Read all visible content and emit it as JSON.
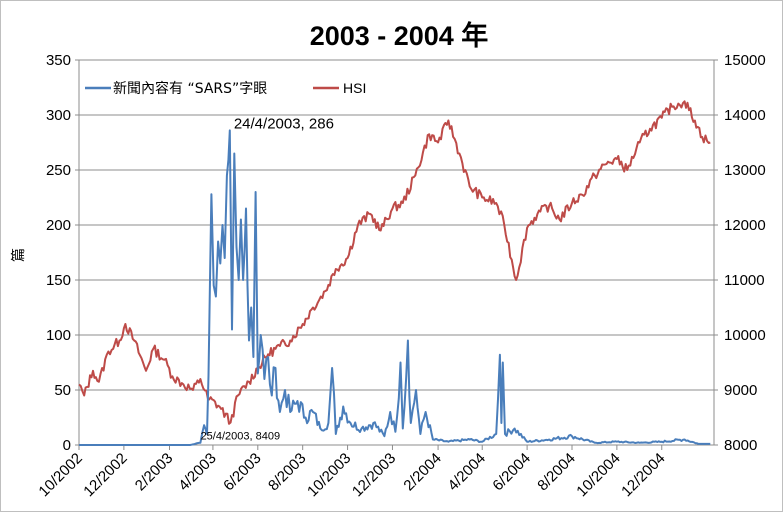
{
  "chart_data": {
    "type": "line",
    "title": "2003 - 2004 年",
    "ylabel": "篇",
    "y2label": "",
    "ylim": [
      0,
      350
    ],
    "y2lim": [
      8000,
      15000
    ],
    "yticks": [
      0,
      50,
      100,
      150,
      200,
      250,
      300,
      350
    ],
    "y2ticks": [
      8000,
      9000,
      10000,
      11000,
      12000,
      13000,
      14000,
      15000
    ],
    "xlim": [
      "2002-10-01",
      "2005-02-10"
    ],
    "xticks": [
      "10/2002",
      "12/2002",
      "2/2003",
      "4/2003",
      "6/2003",
      "8/2003",
      "10/2003",
      "12/2003",
      "2/2004",
      "4/2004",
      "6/2004",
      "8/2004",
      "10/2004",
      "12/2004"
    ],
    "grid": true,
    "legend_position": "top-left",
    "series": [
      {
        "name": "新聞內容有 “SARS”字眼",
        "axis": "left",
        "color": "#4a7ebb",
        "points": [
          [
            "2002-10-01",
            0
          ],
          [
            "2003-03-01",
            0
          ],
          [
            "2003-03-15",
            2
          ],
          [
            "2003-03-20",
            18
          ],
          [
            "2003-03-24",
            10
          ],
          [
            "2003-03-28",
            150
          ],
          [
            "2003-03-30",
            228
          ],
          [
            "2003-04-02",
            145
          ],
          [
            "2003-04-05",
            135
          ],
          [
            "2003-04-08",
            185
          ],
          [
            "2003-04-11",
            165
          ],
          [
            "2003-04-14",
            200
          ],
          [
            "2003-04-17",
            170
          ],
          [
            "2003-04-20",
            245
          ],
          [
            "2003-04-24",
            286
          ],
          [
            "2003-04-27",
            105
          ],
          [
            "2003-04-30",
            265
          ],
          [
            "2003-05-03",
            180
          ],
          [
            "2003-05-06",
            150
          ],
          [
            "2003-05-09",
            205
          ],
          [
            "2003-05-12",
            150
          ],
          [
            "2003-05-16",
            215
          ],
          [
            "2003-05-20",
            95
          ],
          [
            "2003-05-23",
            125
          ],
          [
            "2003-05-26",
            80
          ],
          [
            "2003-05-29",
            230
          ],
          [
            "2003-06-01",
            65
          ],
          [
            "2003-06-05",
            100
          ],
          [
            "2003-06-10",
            60
          ],
          [
            "2003-06-15",
            80
          ],
          [
            "2003-06-20",
            45
          ],
          [
            "2003-06-25",
            70
          ],
          [
            "2003-07-01",
            30
          ],
          [
            "2003-07-08",
            50
          ],
          [
            "2003-07-15",
            30
          ],
          [
            "2003-07-25",
            40
          ],
          [
            "2003-08-05",
            25
          ],
          [
            "2003-08-15",
            30
          ],
          [
            "2003-08-25",
            15
          ],
          [
            "2003-09-05",
            20
          ],
          [
            "2003-09-10",
            70
          ],
          [
            "2003-09-15",
            10
          ],
          [
            "2003-09-25",
            35
          ],
          [
            "2003-10-05",
            20
          ],
          [
            "2003-10-20",
            15
          ],
          [
            "2003-11-05",
            20
          ],
          [
            "2003-11-20",
            8
          ],
          [
            "2003-11-28",
            30
          ],
          [
            "2003-12-05",
            12
          ],
          [
            "2003-12-12",
            75
          ],
          [
            "2003-12-15",
            15
          ],
          [
            "2003-12-22",
            95
          ],
          [
            "2003-12-26",
            20
          ],
          [
            "2004-01-02",
            50
          ],
          [
            "2004-01-08",
            10
          ],
          [
            "2004-01-15",
            30
          ],
          [
            "2004-01-25",
            5
          ],
          [
            "2004-02-15",
            3
          ],
          [
            "2004-03-15",
            5
          ],
          [
            "2004-04-01",
            3
          ],
          [
            "2004-04-20",
            10
          ],
          [
            "2004-04-25",
            82
          ],
          [
            "2004-04-27",
            20
          ],
          [
            "2004-04-29",
            75
          ],
          [
            "2004-05-02",
            10
          ],
          [
            "2004-05-15",
            15
          ],
          [
            "2004-06-01",
            3
          ],
          [
            "2004-07-01",
            5
          ],
          [
            "2004-08-01",
            8
          ],
          [
            "2004-09-01",
            2
          ],
          [
            "2004-10-01",
            3
          ],
          [
            "2004-11-01",
            2
          ],
          [
            "2004-12-01",
            3
          ],
          [
            "2005-01-01",
            5
          ],
          [
            "2005-01-20",
            1
          ],
          [
            "2005-02-05",
            1
          ]
        ]
      },
      {
        "name": "HSI",
        "axis": "right",
        "color": "#be4b48",
        "points": [
          [
            "2002-10-01",
            9100
          ],
          [
            "2002-10-08",
            8900
          ],
          [
            "2002-10-20",
            9350
          ],
          [
            "2002-10-28",
            9150
          ],
          [
            "2002-11-10",
            9700
          ],
          [
            "2002-11-25",
            9900
          ],
          [
            "2002-12-03",
            10200
          ],
          [
            "2002-12-15",
            9900
          ],
          [
            "2002-12-31",
            9350
          ],
          [
            "2003-01-10",
            9750
          ],
          [
            "2003-01-25",
            9550
          ],
          [
            "2003-02-05",
            9250
          ],
          [
            "2003-02-20",
            9100
          ],
          [
            "2003-03-05",
            9000
          ],
          [
            "2003-03-15",
            9200
          ],
          [
            "2003-03-25",
            8850
          ],
          [
            "2003-04-10",
            8700
          ],
          [
            "2003-04-25",
            8409
          ],
          [
            "2003-05-05",
            8900
          ],
          [
            "2003-05-20",
            9150
          ],
          [
            "2003-06-01",
            9400
          ],
          [
            "2003-06-15",
            9650
          ],
          [
            "2003-07-01",
            9800
          ],
          [
            "2003-07-15",
            9900
          ],
          [
            "2003-08-01",
            10200
          ],
          [
            "2003-08-15",
            10500
          ],
          [
            "2003-09-01",
            10800
          ],
          [
            "2003-09-15",
            11200
          ],
          [
            "2003-10-01",
            11400
          ],
          [
            "2003-10-15",
            12000
          ],
          [
            "2003-11-01",
            12200
          ],
          [
            "2003-11-15",
            11900
          ],
          [
            "2003-12-01",
            12300
          ],
          [
            "2003-12-15",
            12400
          ],
          [
            "2004-01-01",
            12900
          ],
          [
            "2004-01-20",
            13650
          ],
          [
            "2004-02-01",
            13500
          ],
          [
            "2004-02-15",
            13900
          ],
          [
            "2004-03-01",
            13300
          ],
          [
            "2004-03-15",
            12700
          ],
          [
            "2004-04-01",
            12500
          ],
          [
            "2004-04-20",
            12400
          ],
          [
            "2004-05-01",
            12000
          ],
          [
            "2004-05-17",
            11000
          ],
          [
            "2004-06-01",
            11950
          ],
          [
            "2004-06-15",
            12200
          ],
          [
            "2004-07-01",
            12350
          ],
          [
            "2004-07-15",
            12100
          ],
          [
            "2004-08-01",
            12400
          ],
          [
            "2004-08-15",
            12550
          ],
          [
            "2004-09-01",
            12900
          ],
          [
            "2004-09-15",
            13100
          ],
          [
            "2004-10-01",
            13200
          ],
          [
            "2004-10-15",
            13000
          ],
          [
            "2004-11-01",
            13500
          ],
          [
            "2004-11-15",
            13750
          ],
          [
            "2004-12-01",
            13950
          ],
          [
            "2004-12-15",
            14150
          ],
          [
            "2005-01-01",
            14250
          ],
          [
            "2005-01-15",
            13900
          ],
          [
            "2005-01-25",
            13600
          ],
          [
            "2005-02-05",
            13500
          ]
        ]
      }
    ],
    "annotations": [
      {
        "text": "24/4/2003, 286",
        "date": "2003-04-24",
        "value": 286,
        "axis": "left"
      },
      {
        "text": "25/4/2003, 8409",
        "date": "2003-04-25",
        "value": 8409,
        "axis": "right"
      }
    ]
  }
}
